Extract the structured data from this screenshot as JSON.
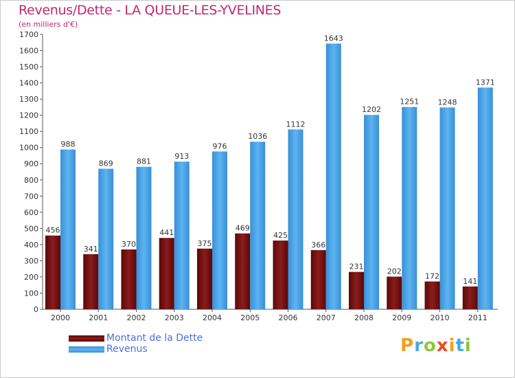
{
  "title": "Revenus/Dette - LA QUEUE-LES-YVELINES",
  "subtitle": "(en milliers d'€)",
  "logo": {
    "chars": [
      "P",
      "r",
      "o",
      "x",
      "i",
      "t",
      "i"
    ],
    "colors": [
      "#f29f1c",
      "#4aa8e0",
      "#8cc63f",
      "#e94e1b",
      "#f29f1c",
      "#4aa8e0",
      "#8cc63f"
    ]
  },
  "chart_data": {
    "type": "bar",
    "categories": [
      "2000",
      "2001",
      "2002",
      "2003",
      "2004",
      "2005",
      "2006",
      "2007",
      "2008",
      "2009",
      "2010",
      "2011"
    ],
    "series": [
      {
        "name": "Montant de la Dette",
        "color": "#7a1010",
        "values": [
          456,
          341,
          370,
          441,
          375,
          469,
          425,
          366,
          231,
          202,
          172,
          141
        ]
      },
      {
        "name": "Revenus",
        "color": "#4da6ea",
        "values": [
          988,
          869,
          881,
          913,
          976,
          1036,
          1112,
          1643,
          1202,
          1251,
          1248,
          1371
        ]
      }
    ],
    "ylim": [
      0,
      1700
    ],
    "ytick_step": 100,
    "grid": false,
    "legend": "bottom-left"
  }
}
